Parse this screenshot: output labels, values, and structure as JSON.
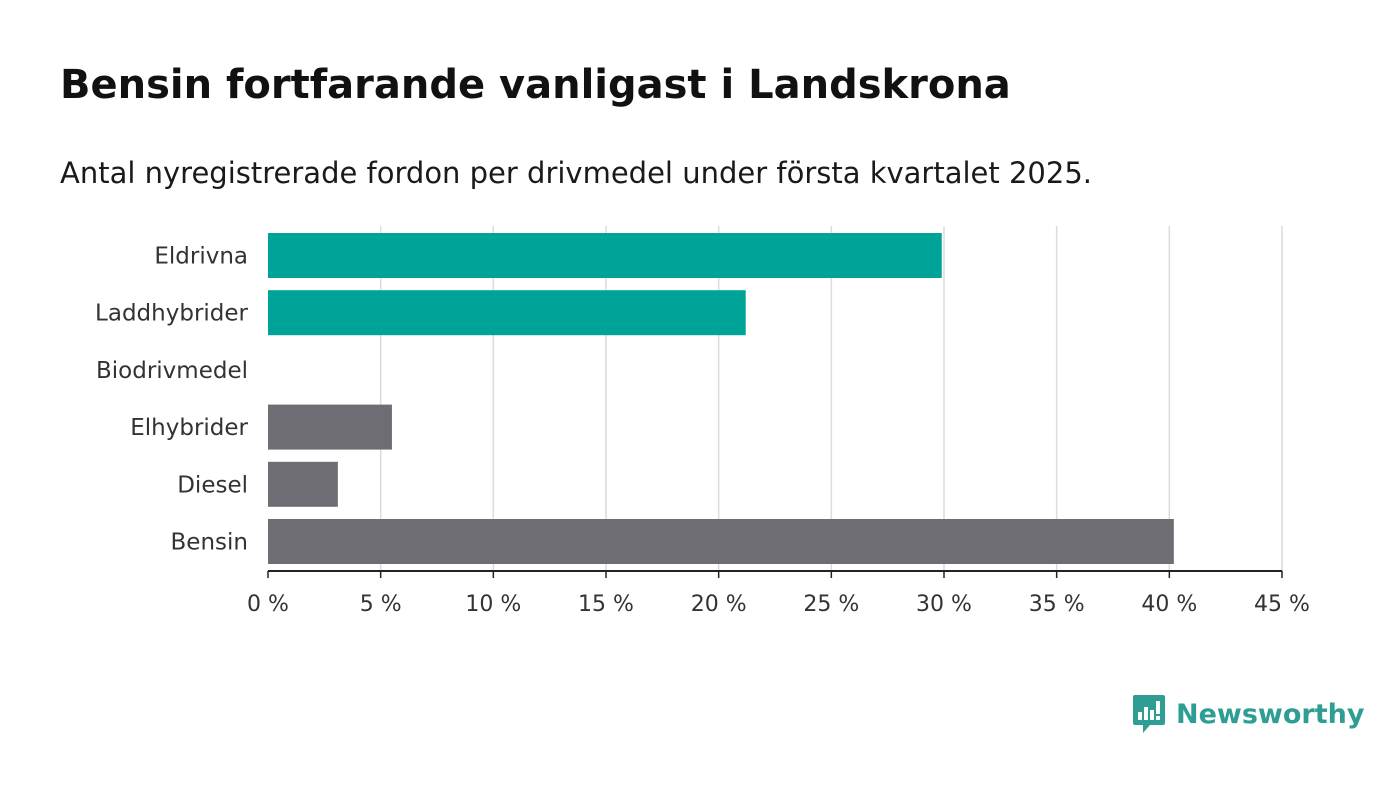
{
  "title": "Bensin fortfarande vanligast i Landskrona",
  "subtitle": "Antal nyregistrerade fordon per drivmedel under första kvartalet 2025.",
  "brand": {
    "name": "Newsworthy",
    "icon": "newsworthy-logo-icon",
    "color": "#2e9d93"
  },
  "chart_data": {
    "type": "bar",
    "orientation": "horizontal",
    "categories": [
      "Eldrivna",
      "Laddhybrider",
      "Biodrivmedel",
      "Elhybrider",
      "Diesel",
      "Bensin"
    ],
    "values": [
      29.9,
      21.2,
      0,
      5.5,
      3.1,
      40.2
    ],
    "colors": [
      "#00a398",
      "#00a398",
      "#00a398",
      "#6e6d74",
      "#6e6d74",
      "#6e6d74"
    ],
    "xlim": [
      0,
      45
    ],
    "xticks": [
      0,
      5,
      10,
      15,
      20,
      25,
      30,
      35,
      40,
      45
    ],
    "xtick_labels": [
      "0 %",
      "5 %",
      "10 %",
      "15 %",
      "20 %",
      "25 %",
      "30 %",
      "35 %",
      "40 %",
      "45 %"
    ],
    "grid": "vertical",
    "xlabel": "",
    "ylabel": ""
  }
}
